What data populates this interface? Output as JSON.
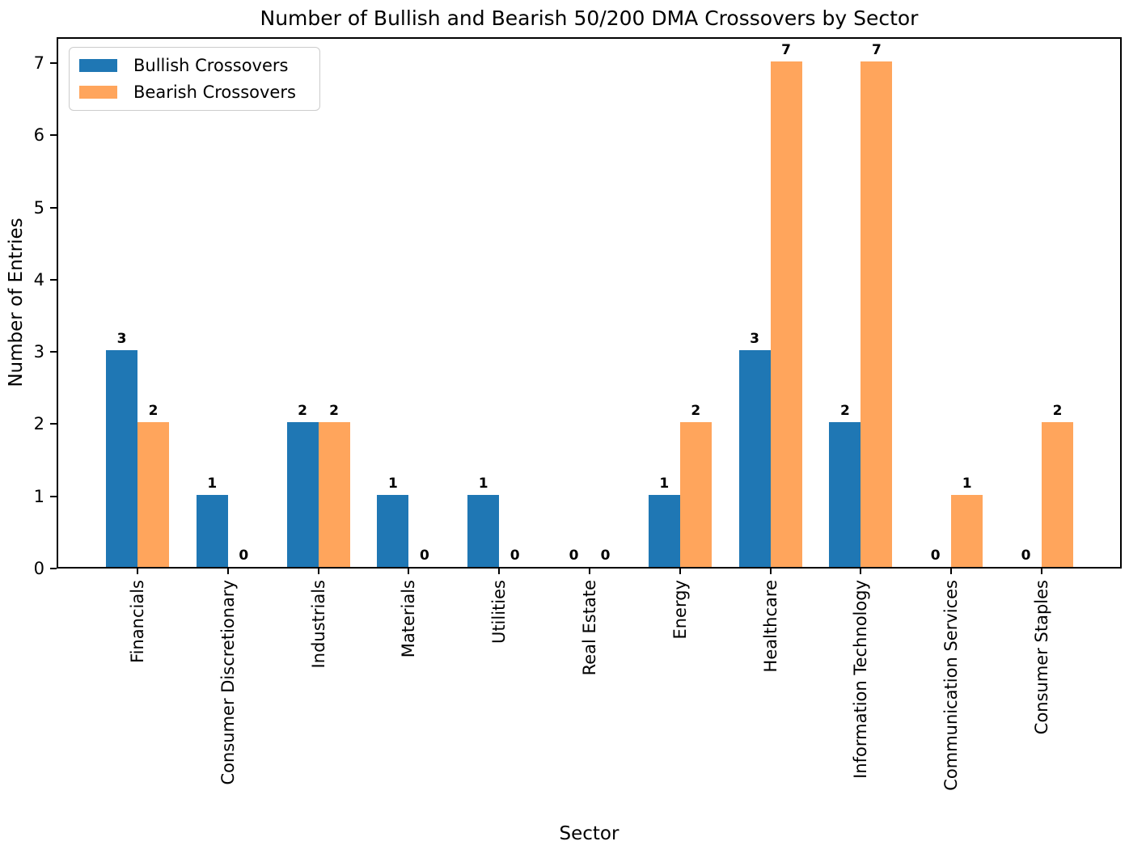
{
  "chart_data": {
    "type": "bar",
    "title": "Number of Bullish and Bearish 50/200 DMA Crossovers by Sector",
    "xlabel": "Sector",
    "ylabel": "Number of Entries",
    "categories": [
      "Financials",
      "Consumer Discretionary",
      "Industrials",
      "Materials",
      "Utilities",
      "Real Estate",
      "Energy",
      "Healthcare",
      "Information Technology",
      "Communication Services",
      "Consumer Staples"
    ],
    "series": [
      {
        "name": "Bullish Crossovers",
        "color": "#1f77b4",
        "values": [
          3,
          1,
          2,
          1,
          1,
          0,
          1,
          3,
          2,
          0,
          0
        ]
      },
      {
        "name": "Bearish Crossovers",
        "color": "#ffa55c",
        "values": [
          2,
          0,
          2,
          0,
          0,
          0,
          2,
          7,
          7,
          1,
          2
        ]
      }
    ],
    "bar_value_labels": true,
    "yticks": [
      0,
      1,
      2,
      3,
      4,
      5,
      6,
      7
    ],
    "ylim": [
      0,
      7.35
    ],
    "grid": false,
    "legend_position": "upper left",
    "background_color": "#ffffff",
    "text_color": "#000000"
  }
}
